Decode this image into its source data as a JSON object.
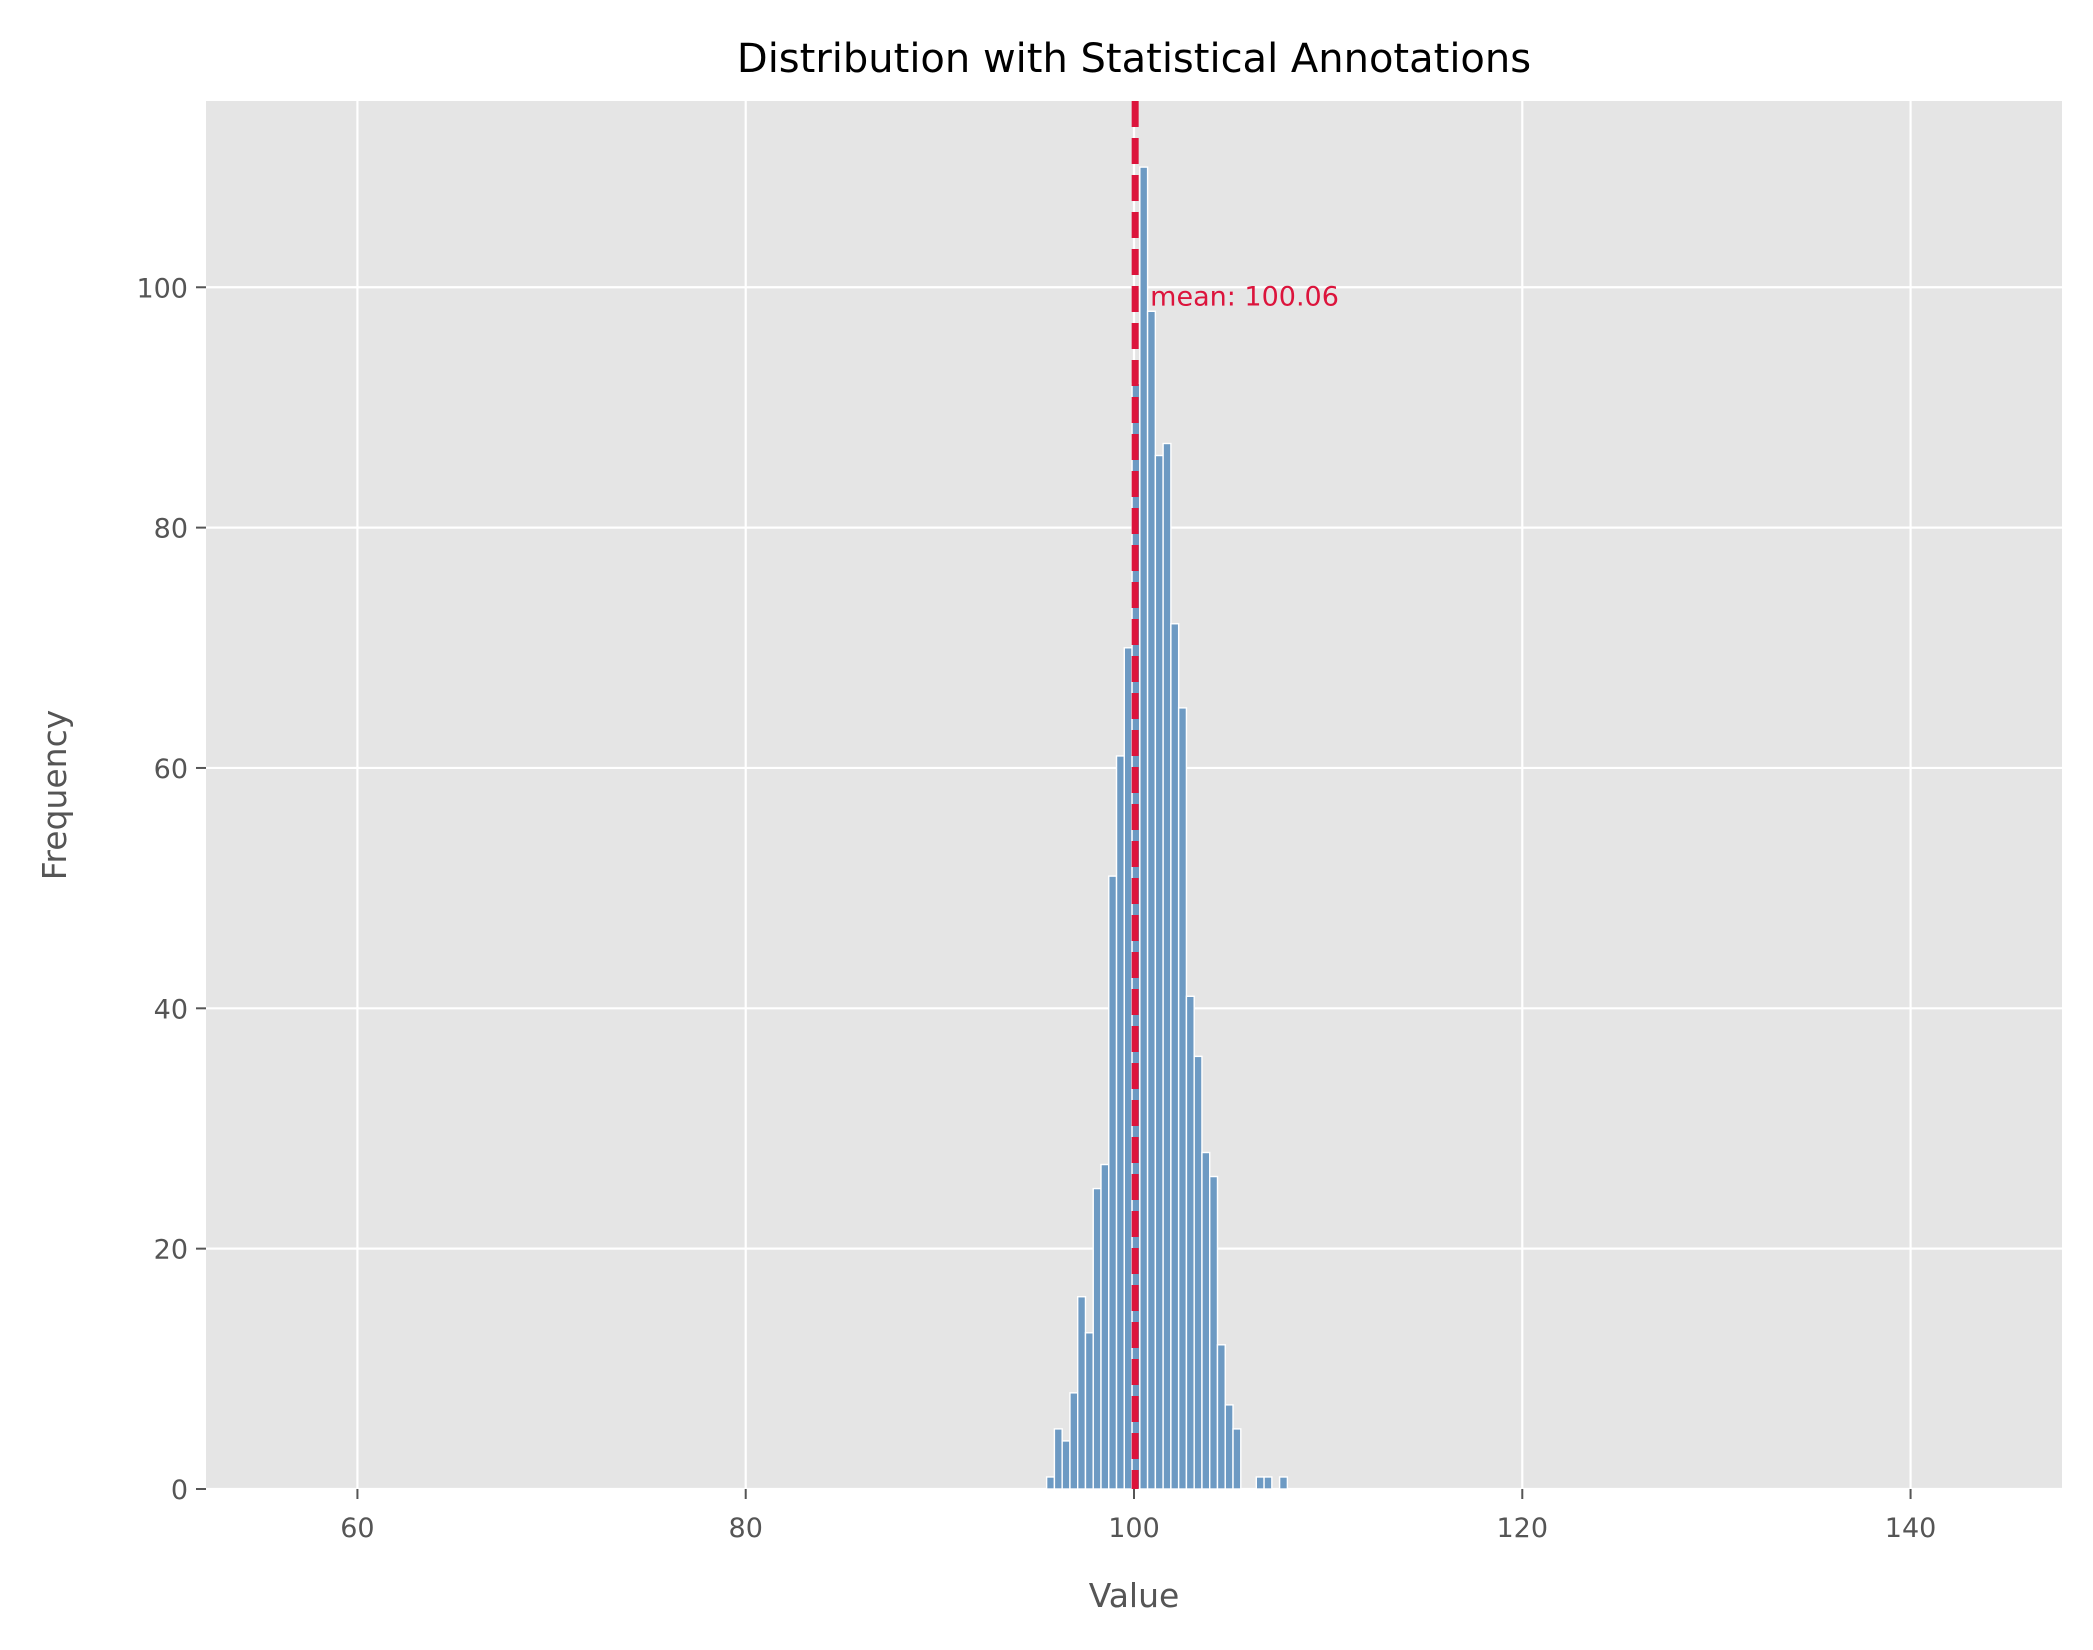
{
  "chart_data": {
    "type": "bar",
    "title": "Distribution with Statistical Annotations",
    "xlabel": "Value",
    "ylabel": "Frequency",
    "xlim": [
      52.2,
      147.8
    ],
    "ylim": [
      0,
      115.5
    ],
    "xticks": [
      60,
      80,
      100,
      120,
      140
    ],
    "yticks": [
      0,
      20,
      40,
      60,
      80,
      100
    ],
    "grid": true,
    "bin_width": 0.4,
    "bin_start": 95.5,
    "values": [
      1,
      5,
      4,
      8,
      16,
      13,
      25,
      27,
      51,
      61,
      70,
      92,
      110,
      98,
      86,
      87,
      72,
      65,
      41,
      36,
      28,
      26,
      12,
      7,
      5,
      0,
      0,
      1,
      1,
      0,
      1
    ],
    "mean": 100.06,
    "mean_label": "mean: 100.06",
    "colors": {
      "bar": "#6d9ac3",
      "bar_edge": "#ffffff",
      "mean_line": "#dc143c",
      "plot_bg": "#e5e5e5",
      "grid": "#ffffff"
    }
  }
}
